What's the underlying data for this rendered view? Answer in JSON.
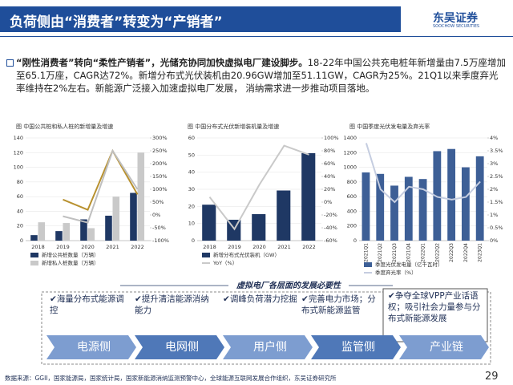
{
  "header": {
    "title": "负荷侧由“消费者”转变为“产销者”",
    "logo": "东吴证券",
    "logo_sub": "SOOCHOW SECURITIES"
  },
  "summary": {
    "lead": "“刚性消费者”转向“柔性产销者”，光储充协同加快虚拟电厂建设脚步。",
    "body": "18-22年中国公共充电桩年新增量由7.5万座增加至65.1万座，CAGR达72%。新增分布式光伏装机由20.96GW增加至51.11GW，CAGR为25%。21Q1以来季度弃光率维持在2%左右。新能源广泛接入加速虚拟电厂发展， 消纳需求进一步推动项目落地。"
  },
  "chart_data": [
    {
      "type": "combo",
      "title": "图  中国公共桩和私人桩的新增量及增速",
      "categories": [
        "2018",
        "2019",
        "2020",
        "2021",
        "2022"
      ],
      "series": [
        {
          "name": "新增公共桩数量（万辆）",
          "type": "bar",
          "color": "#1f3864",
          "values": [
            7.5,
            13,
            29,
            34,
            65.1
          ]
        },
        {
          "name": "新增私人桩数量（万辆）",
          "type": "bar",
          "color": "#c9c9c9",
          "values": [
            25,
            24,
            17,
            60,
            120
          ]
        },
        {
          "type": "line",
          "axis": "y2",
          "color": "#b8912f",
          "values": [
            null,
            60,
            20,
            250,
            80
          ]
        },
        {
          "type": "line",
          "axis": "y2",
          "color": "#bfbfbf",
          "values": [
            null,
            -5,
            -30,
            250,
            100
          ]
        }
      ],
      "ylim": [
        0,
        140
      ],
      "yticks": [
        0,
        20,
        40,
        60,
        80,
        100,
        120,
        140
      ],
      "y2lim": [
        -100,
        300
      ],
      "y2ticks": [
        {
          "value": -100,
          "label": "-100%"
        },
        {
          "value": -50,
          "label": "-50%"
        },
        {
          "value": 0,
          "label": "0%"
        },
        {
          "value": 50,
          "label": "50%"
        },
        {
          "value": 100,
          "label": "100%"
        },
        {
          "value": 150,
          "label": "150%"
        },
        {
          "value": 200,
          "label": "200%"
        },
        {
          "value": 250,
          "label": "250%"
        },
        {
          "value": 300,
          "label": "300%"
        }
      ]
    },
    {
      "type": "combo",
      "title": "图  中国分布式光伏新增装机量及增速",
      "categories": [
        "2018",
        "2019",
        "2020",
        "2021",
        "2022"
      ],
      "series": [
        {
          "name": "新增分布式光伏装机（GW）",
          "type": "bar",
          "color": "#1f3864",
          "values": [
            21,
            12.2,
            15.5,
            29.3,
            51.1
          ]
        },
        {
          "name": "YoY（%）",
          "type": "line",
          "axis": "y2",
          "color": "#c9c9c9",
          "values": [
            8,
            -42,
            27,
            88,
            74
          ]
        }
      ],
      "ylim": [
        0,
        60
      ],
      "yticks": [
        0,
        10,
        20,
        30,
        40,
        50,
        60
      ],
      "y2lim": [
        -60,
        100
      ],
      "y2ticks": [
        {
          "value": -60,
          "label": "-60%"
        },
        {
          "value": -40,
          "label": "-40%"
        },
        {
          "value": -20,
          "label": "-20%"
        },
        {
          "value": 0,
          "label": "0%"
        },
        {
          "value": 20,
          "label": "20%"
        },
        {
          "value": 40,
          "label": "40%"
        },
        {
          "value": 60,
          "label": "60%"
        },
        {
          "value": 80,
          "label": "80%"
        },
        {
          "value": 100,
          "label": "100%"
        }
      ]
    },
    {
      "type": "combo",
      "title": "图  中国季度光伏发电量及弃光率",
      "rotate_labels": true,
      "categories": [
        "2021Q1",
        "2021Q2",
        "2021Q3",
        "2021Q4",
        "2022Q1",
        "2022Q2",
        "2022Q3",
        "2022Q4",
        "2023Q1"
      ],
      "series": [
        {
          "name": "季度光伏发电量（亿千瓦时）",
          "type": "bar",
          "color": "#3d5f96",
          "values": [
            930,
            910,
            750,
            870,
            840,
            1220,
            1250,
            1000,
            1150
          ]
        },
        {
          "name": "季度弃光率（%）",
          "type": "line",
          "axis": "y2",
          "color": "#c5cde0",
          "values": [
            3.8,
            2,
            1.5,
            2.1,
            2,
            1.7,
            1.6,
            1.7,
            2.3
          ]
        }
      ],
      "ylim": [
        0,
        1400
      ],
      "yticks": [
        0,
        200,
        400,
        600,
        800,
        1000,
        1200,
        1400
      ],
      "y2lim": [
        0,
        4
      ],
      "y2ticks": [
        {
          "value": 0,
          "label": "0%"
        },
        {
          "value": 0.5,
          "label": "0.5%"
        },
        {
          "value": 1,
          "label": "1%"
        },
        {
          "value": 1.5,
          "label": "1.5%"
        },
        {
          "value": 2,
          "label": "2%"
        },
        {
          "value": 2.5,
          "label": "2.5%"
        },
        {
          "value": 3,
          "label": "3%"
        },
        {
          "value": 3.5,
          "label": "3.5%"
        },
        {
          "value": 4,
          "label": "4%"
        }
      ]
    }
  ],
  "necessity": {
    "title": "虚拟电厂各层面的发展必要性",
    "items": [
      "海量分布式能源调控",
      "提升清洁能源消纳能力",
      "调峰负荷潜力挖掘",
      "完善电力市场；分布式新能源监管",
      "争夺全球VPP产业话语权；吸引社会力量参与分布式新能源发展"
    ],
    "sides": [
      "电源侧",
      "电网侧",
      "用户侧",
      "监管侧",
      "产业链"
    ]
  },
  "footer": {
    "source": "数据来源：GGII，国家能源局，国家统计局，国家新能源消纳监测预警中心，全球能源互联网发展合作组织，东吴证券研究所",
    "page": "29"
  }
}
